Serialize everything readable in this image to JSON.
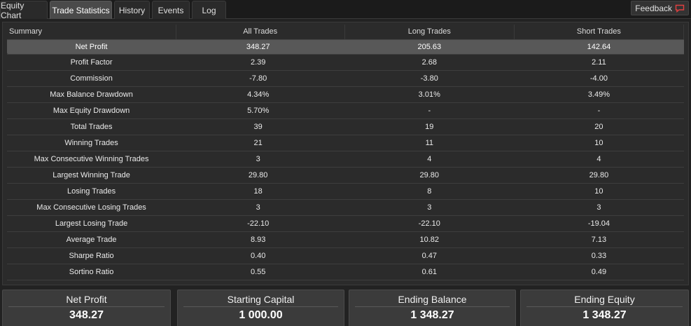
{
  "tabs": [
    {
      "label": "Equity Chart"
    },
    {
      "label": "Trade Statistics"
    },
    {
      "label": "History"
    },
    {
      "label": "Events"
    },
    {
      "label": "Log"
    }
  ],
  "active_tab": "Trade Statistics",
  "feedback": {
    "label": "Feedback",
    "icon": "speech-bubble-icon",
    "icon_color": "#e04040"
  },
  "stats": {
    "headers": [
      "Summary",
      "All Trades",
      "Long Trades",
      "Short Trades"
    ],
    "selected_row": "Net Profit",
    "rows": [
      {
        "label": "Net Profit",
        "all": "348.27",
        "long": "205.63",
        "short": "142.64"
      },
      {
        "label": "Profit Factor",
        "all": "2.39",
        "long": "2.68",
        "short": "2.11"
      },
      {
        "label": "Commission",
        "all": "-7.80",
        "long": "-3.80",
        "short": "-4.00"
      },
      {
        "label": "Max Balance Drawdown",
        "all": "4.34%",
        "long": "3.01%",
        "short": "3.49%"
      },
      {
        "label": "Max Equity Drawdown",
        "all": "5.70%",
        "long": "-",
        "short": "-"
      },
      {
        "label": "Total Trades",
        "all": "39",
        "long": "19",
        "short": "20"
      },
      {
        "label": "Winning Trades",
        "all": "21",
        "long": "11",
        "short": "10"
      },
      {
        "label": "Max Consecutive Winning Trades",
        "all": "3",
        "long": "4",
        "short": "4"
      },
      {
        "label": "Largest Winning Trade",
        "all": "29.80",
        "long": "29.80",
        "short": "29.80"
      },
      {
        "label": "Losing Trades",
        "all": "18",
        "long": "8",
        "short": "10"
      },
      {
        "label": "Max Consecutive Losing Trades",
        "all": "3",
        "long": "3",
        "short": "3"
      },
      {
        "label": "Largest Losing Trade",
        "all": "-22.10",
        "long": "-22.10",
        "short": "-19.04"
      },
      {
        "label": "Average Trade",
        "all": "8.93",
        "long": "10.82",
        "short": "7.13"
      },
      {
        "label": "Sharpe Ratio",
        "all": "0.40",
        "long": "0.47",
        "short": "0.33"
      },
      {
        "label": "Sortino Ratio",
        "all": "0.55",
        "long": "0.61",
        "short": "0.49"
      }
    ]
  },
  "summary_cards": [
    {
      "title": "Net Profit",
      "value": "348.27"
    },
    {
      "title": "Starting Capital",
      "value": "1 000.00"
    },
    {
      "title": "Ending Balance",
      "value": "1 348.27"
    },
    {
      "title": "Ending Equity",
      "value": "1 348.27"
    }
  ]
}
